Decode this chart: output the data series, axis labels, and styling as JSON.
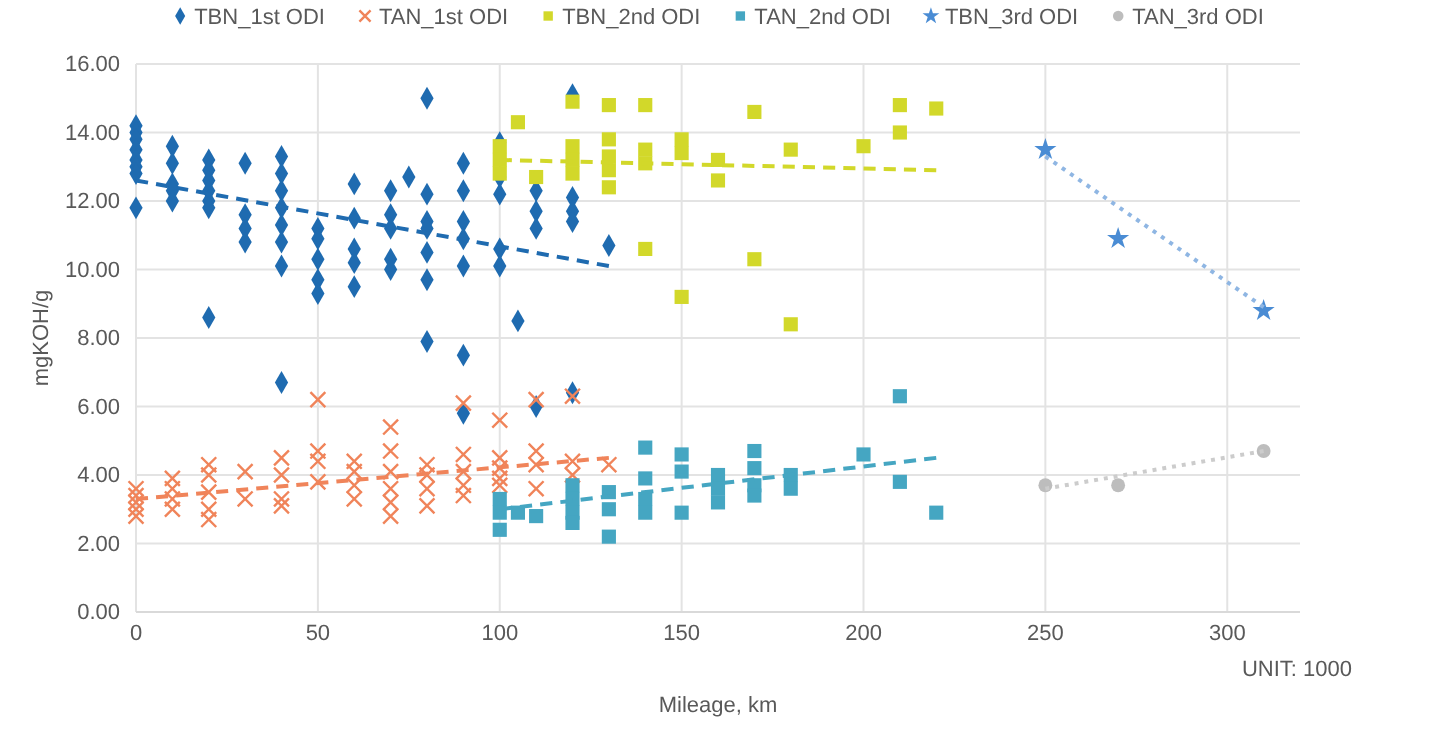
{
  "chart_data": {
    "type": "scatter",
    "xlabel": "Mileage, km",
    "ylabel": "mgKOH/g",
    "annotations": [
      "UNIT: 1000"
    ],
    "xlim": [
      0,
      320
    ],
    "xticks": [
      0,
      50,
      100,
      150,
      200,
      250,
      300
    ],
    "ylim": [
      0,
      16
    ],
    "yticks": [
      {
        "value": 0,
        "label": "0.00"
      },
      {
        "value": 2,
        "label": "2.00"
      },
      {
        "value": 4,
        "label": "4.00"
      },
      {
        "value": 6,
        "label": "6.00"
      },
      {
        "value": 8,
        "label": "8.00"
      },
      {
        "value": 10,
        "label": "10.00"
      },
      {
        "value": 12,
        "label": "12.00"
      },
      {
        "value": 14,
        "label": "14.00"
      },
      {
        "value": 16,
        "label": "16.00"
      }
    ],
    "grid": true,
    "legend": "top",
    "series": [
      {
        "name": "TBN_1st ODI",
        "color": "#1f6bb0",
        "marker": "diamond",
        "x": [
          0,
          0,
          0,
          0,
          0,
          0,
          0,
          0,
          10,
          10,
          10,
          10,
          10,
          20,
          20,
          20,
          20,
          20,
          20,
          20,
          30,
          30,
          30,
          30,
          40,
          40,
          40,
          40,
          40,
          40,
          40,
          40,
          50,
          50,
          50,
          50,
          50,
          60,
          60,
          60,
          60,
          60,
          70,
          70,
          70,
          70,
          70,
          75,
          80,
          80,
          80,
          80,
          80,
          80,
          80,
          90,
          90,
          90,
          90,
          90,
          90,
          90,
          100,
          100,
          100,
          100,
          100,
          105,
          110,
          110,
          110,
          110,
          120,
          120,
          120,
          120,
          120,
          130
        ],
        "values": [
          14.2,
          14,
          13.8,
          13.5,
          13.2,
          13,
          12.8,
          11.8,
          13.6,
          13.1,
          12.5,
          12.3,
          12,
          13.2,
          12.9,
          12.6,
          12.3,
          12,
          11.8,
          8.6,
          13.1,
          11.6,
          11.2,
          10.8,
          13.3,
          12.8,
          12.3,
          11.8,
          11.3,
          10.8,
          10.1,
          6.7,
          11.2,
          10.9,
          10.3,
          9.7,
          9.3,
          12.5,
          11.5,
          10.6,
          10.2,
          9.5,
          12.3,
          11.6,
          11.2,
          10.3,
          10,
          12.7,
          15,
          12.2,
          11.4,
          11.2,
          10.5,
          9.7,
          7.9,
          13.1,
          12.3,
          11.4,
          10.9,
          10.1,
          7.5,
          5.8,
          13.7,
          12.7,
          12.2,
          10.6,
          10.1,
          8.5,
          12.3,
          11.7,
          11.2,
          6,
          15.1,
          12.1,
          11.7,
          11.4,
          6.4,
          10.7
        ]
      },
      {
        "name": "TAN_1st ODI",
        "color": "#f0845a",
        "marker": "cross",
        "x": [
          0,
          0,
          0,
          0,
          0,
          10,
          10,
          10,
          10,
          20,
          20,
          20,
          20,
          20,
          30,
          30,
          40,
          40,
          40,
          40,
          50,
          50,
          50,
          50,
          60,
          60,
          60,
          60,
          70,
          70,
          70,
          70,
          70,
          70,
          80,
          80,
          80,
          80,
          90,
          90,
          90,
          90,
          90,
          100,
          100,
          100,
          100,
          100,
          110,
          110,
          110,
          110,
          120,
          120,
          120,
          130
        ],
        "values": [
          3.6,
          3.4,
          3.2,
          3,
          2.8,
          3.9,
          3.6,
          3.3,
          3,
          4.3,
          4,
          3.5,
          3,
          2.7,
          4.1,
          3.3,
          4.5,
          4,
          3.3,
          3.1,
          6.2,
          4.7,
          4.4,
          3.8,
          4.4,
          4.1,
          3.7,
          3.3,
          5.4,
          4.7,
          4.1,
          3.6,
          3.2,
          2.8,
          4.3,
          4,
          3.6,
          3.1,
          6.1,
          4.6,
          4.1,
          3.7,
          3.4,
          5.6,
          4.5,
          4.2,
          3.9,
          3.7,
          6.2,
          4.7,
          4.3,
          3.6,
          6.3,
          4.4,
          4,
          4.3
        ]
      },
      {
        "name": "TBN_2nd ODI",
        "color": "#d2d82a",
        "marker": "square",
        "x": [
          100,
          100,
          100,
          105,
          110,
          120,
          120,
          120,
          120,
          130,
          130,
          130,
          130,
          130,
          140,
          140,
          140,
          140,
          150,
          150,
          150,
          160,
          160,
          170,
          170,
          180,
          180,
          200,
          210,
          210,
          220
        ],
        "values": [
          13.6,
          13.2,
          12.8,
          14.3,
          12.7,
          14.9,
          13.6,
          13.2,
          12.8,
          14.8,
          13.8,
          13.3,
          12.9,
          12.4,
          14.8,
          13.5,
          13.1,
          10.6,
          13.8,
          13.4,
          9.2,
          13.2,
          12.6,
          14.6,
          10.3,
          13.5,
          8.4,
          13.6,
          14.8,
          14,
          14.7
        ]
      },
      {
        "name": "TAN_2nd ODI",
        "color": "#45a6c2",
        "marker": "square",
        "x": [
          100,
          100,
          100,
          105,
          110,
          120,
          120,
          120,
          120,
          130,
          130,
          130,
          140,
          140,
          140,
          140,
          150,
          150,
          150,
          160,
          160,
          160,
          170,
          170,
          170,
          170,
          180,
          180,
          200,
          210,
          210,
          220
        ],
        "values": [
          3.3,
          2.9,
          2.4,
          2.9,
          2.8,
          3.7,
          3.3,
          2.9,
          2.6,
          3.5,
          3,
          2.2,
          4.8,
          3.9,
          3.3,
          2.9,
          4.6,
          4.1,
          2.9,
          4,
          3.6,
          3.2,
          4.7,
          4.2,
          3.7,
          3.4,
          4,
          3.6,
          4.6,
          6.3,
          3.8,
          2.9
        ]
      },
      {
        "name": "TBN_3rd ODI",
        "color": "#4a8cd4",
        "marker": "star",
        "x": [
          250,
          270,
          310
        ],
        "values": [
          13.5,
          10.9,
          8.8
        ]
      },
      {
        "name": "TAN_3rd ODI",
        "color": "#bdbdbd",
        "marker": "circle",
        "x": [
          250,
          270,
          310
        ],
        "values": [
          3.7,
          3.7,
          4.7
        ]
      },
      {
        "type": "line",
        "color": "#1f6bb0",
        "marker": "none",
        "line_style": "dashed",
        "x": [
          0,
          130
        ],
        "values": [
          12.6,
          10.1
        ]
      },
      {
        "type": "line",
        "color": "#f0845a",
        "marker": "none",
        "line_style": "dashed",
        "x": [
          0,
          130
        ],
        "values": [
          3.3,
          4.5
        ]
      },
      {
        "type": "line",
        "color": "#d2d82a",
        "marker": "none",
        "line_style": "dashed",
        "x": [
          100,
          220
        ],
        "values": [
          13.2,
          12.9
        ]
      },
      {
        "type": "line",
        "color": "#45a6c2",
        "marker": "none",
        "line_style": "dashed",
        "x": [
          100,
          220
        ],
        "values": [
          3,
          4.5
        ]
      },
      {
        "type": "line",
        "color": "#8fb6e3",
        "marker": "none",
        "line_style": "dotted",
        "x": [
          250,
          310
        ],
        "values": [
          13.3,
          8.9
        ]
      },
      {
        "type": "line",
        "color": "#cccccc",
        "marker": "none",
        "line_style": "dotted",
        "x": [
          250,
          310
        ],
        "values": [
          3.6,
          4.7
        ]
      }
    ]
  }
}
